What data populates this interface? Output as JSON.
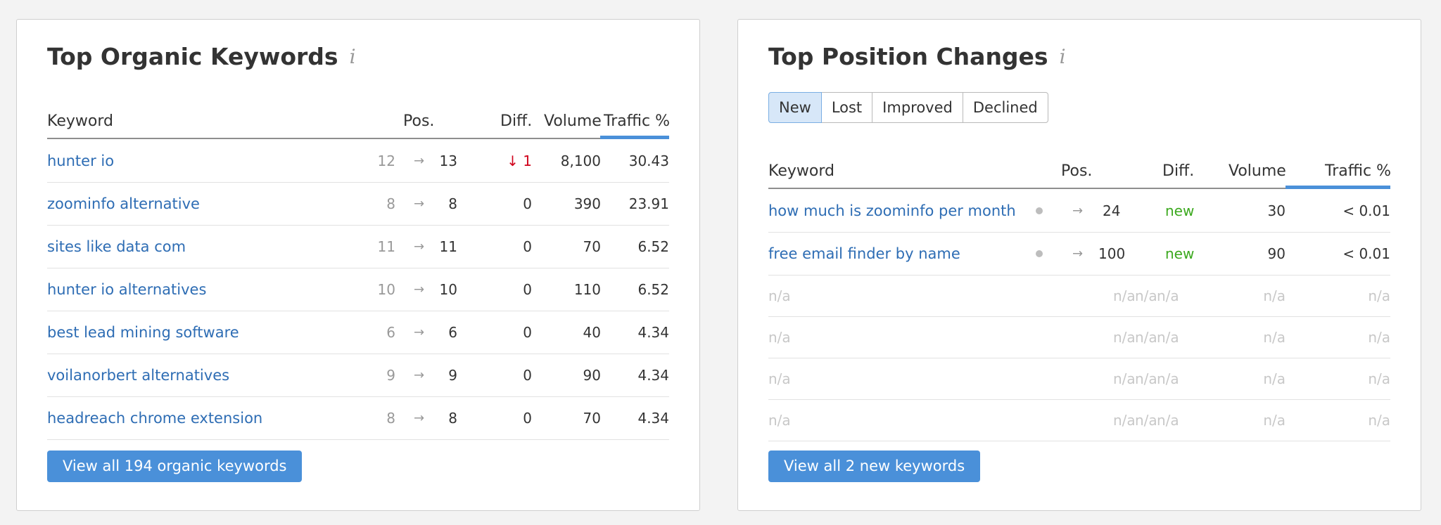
{
  "left": {
    "title": "Top Organic Keywords",
    "columns": {
      "keyword": "Keyword",
      "pos": "Pos.",
      "diff": "Diff.",
      "volume": "Volume",
      "traffic": "Traffic %"
    },
    "rows": [
      {
        "keyword": "hunter io",
        "prev": "12",
        "curr": "13",
        "diff": "↓ 1",
        "diff_type": "down",
        "volume": "8,100",
        "traffic": "30.43"
      },
      {
        "keyword": "zoominfo alternative",
        "prev": "8",
        "curr": "8",
        "diff": "0",
        "diff_type": "none",
        "volume": "390",
        "traffic": "23.91"
      },
      {
        "keyword": "sites like data com",
        "prev": "11",
        "curr": "11",
        "diff": "0",
        "diff_type": "none",
        "volume": "70",
        "traffic": "6.52"
      },
      {
        "keyword": "hunter io alternatives",
        "prev": "10",
        "curr": "10",
        "diff": "0",
        "diff_type": "none",
        "volume": "110",
        "traffic": "6.52"
      },
      {
        "keyword": "best lead mining software",
        "prev": "6",
        "curr": "6",
        "diff": "0",
        "diff_type": "none",
        "volume": "40",
        "traffic": "4.34"
      },
      {
        "keyword": "voilanorbert alternatives",
        "prev": "9",
        "curr": "9",
        "diff": "0",
        "diff_type": "none",
        "volume": "90",
        "traffic": "4.34"
      },
      {
        "keyword": "headreach chrome extension",
        "prev": "8",
        "curr": "8",
        "diff": "0",
        "diff_type": "none",
        "volume": "70",
        "traffic": "4.34"
      }
    ],
    "button": "View all 194 organic keywords"
  },
  "right": {
    "title": "Top Position Changes",
    "tabs": [
      {
        "label": "New",
        "active": true
      },
      {
        "label": "Lost",
        "active": false
      },
      {
        "label": "Improved",
        "active": false
      },
      {
        "label": "Declined",
        "active": false
      }
    ],
    "columns": {
      "keyword": "Keyword",
      "pos": "Pos.",
      "diff": "Diff.",
      "volume": "Volume",
      "traffic": "Traffic %"
    },
    "rows": [
      {
        "keyword": "how much is zoominfo per month",
        "curr": "24",
        "diff": "new",
        "volume": "30",
        "traffic": "< 0.01"
      },
      {
        "keyword": "free email finder by name",
        "curr": "100",
        "diff": "new",
        "volume": "90",
        "traffic": "< 0.01"
      }
    ],
    "empty_rows": [
      {
        "keyword": "n/a",
        "pos": "n/a",
        "diff": "n/a",
        "extra": "n/a",
        "volume": "n/a",
        "traffic": "n/a"
      },
      {
        "keyword": "n/a",
        "pos": "n/a",
        "diff": "n/a",
        "extra": "n/a",
        "volume": "n/a",
        "traffic": "n/a"
      },
      {
        "keyword": "n/a",
        "pos": "n/a",
        "diff": "n/a",
        "extra": "n/a",
        "volume": "n/a",
        "traffic": "n/a"
      },
      {
        "keyword": "n/a",
        "pos": "n/a",
        "diff": "n/a",
        "extra": "n/a",
        "volume": "n/a",
        "traffic": "n/a"
      }
    ],
    "button": "View all 2 new keywords"
  },
  "icons": {
    "info": "info-icon",
    "arrow": "arrow-right-icon",
    "dot": "dot-icon"
  },
  "colors": {
    "link": "#2e6db4",
    "accent": "#4a90d9",
    "down": "#d0021b",
    "new": "#3ca91f"
  }
}
